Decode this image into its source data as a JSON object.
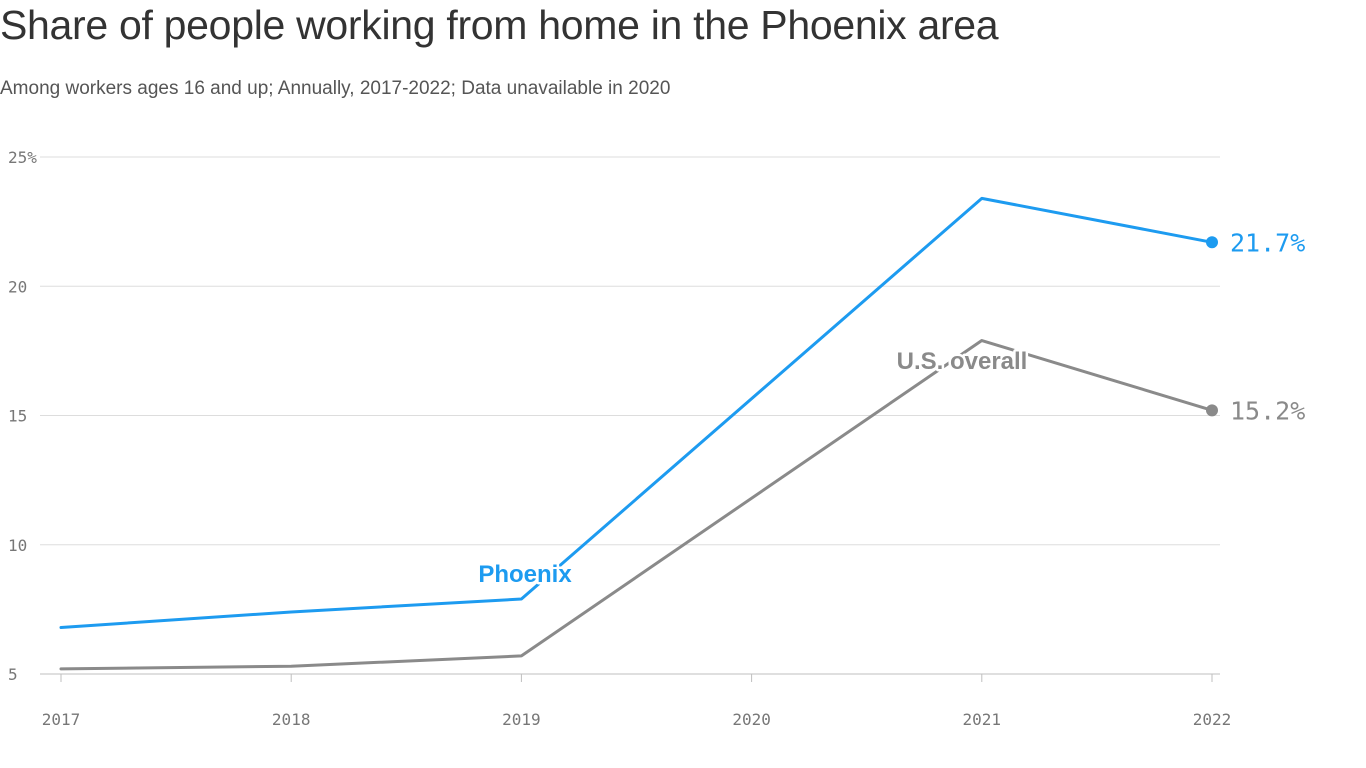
{
  "header": {
    "title": "Share of people working from home in the Phoenix area",
    "subtitle": "Among workers ages 16 and up; Annually, 2017-2022; Data unavailable in 2020"
  },
  "chart_data": {
    "type": "line",
    "title": "Share of people working from home in the Phoenix area",
    "subtitle": "Among workers ages 16 and up; Annually, 2017-2022; Data unavailable in 2020",
    "xlabel": "",
    "ylabel": "",
    "categories": [
      "2017",
      "2018",
      "2019",
      "2020",
      "2021",
      "2022"
    ],
    "ylim": [
      5,
      25
    ],
    "yticks": [
      5,
      10,
      15,
      20,
      25
    ],
    "ytick_labels": [
      "5",
      "10",
      "15",
      "20",
      "25%"
    ],
    "grid": true,
    "series": [
      {
        "name": "Phoenix",
        "color": "#1d9bf0",
        "values": [
          6.8,
          7.4,
          7.9,
          null,
          23.4,
          21.7
        ],
        "end_label": "21.7%"
      },
      {
        "name": "U.S. overall",
        "color": "#8a8a8a",
        "values": [
          5.2,
          5.3,
          5.7,
          null,
          17.9,
          15.2
        ],
        "end_label": "15.2%"
      }
    ]
  }
}
